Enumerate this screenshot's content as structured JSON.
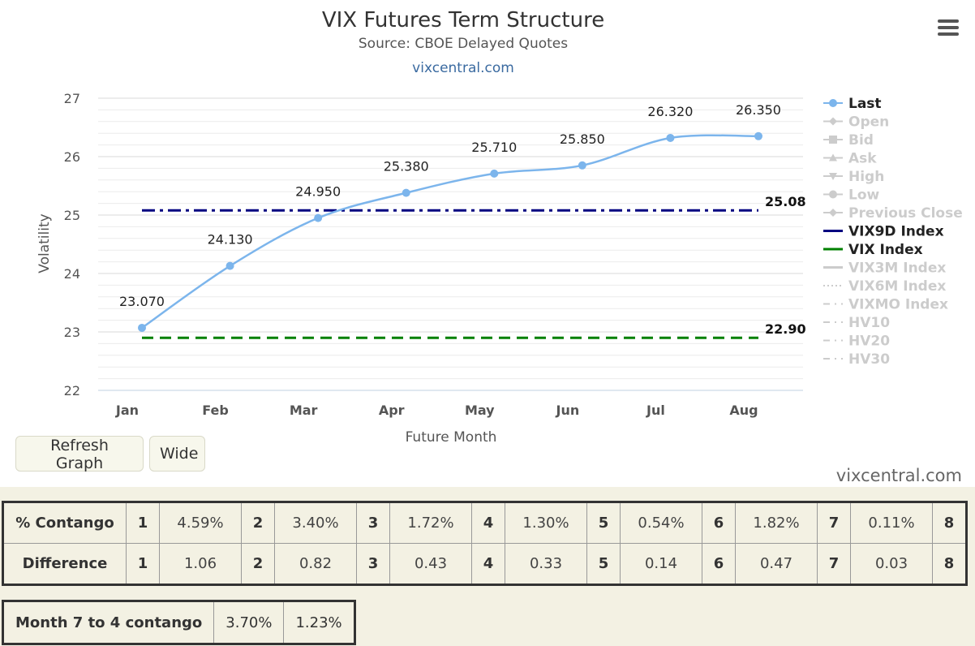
{
  "chart_data": {
    "type": "line",
    "title": "VIX Futures Term Structure",
    "subtitle": "Source: CBOE Delayed Quotes",
    "link": "vixcentral.com",
    "xlabel": "Future Month",
    "ylabel": "Volatility",
    "categories": [
      "Jan",
      "Feb",
      "Mar",
      "Apr",
      "May",
      "Jun",
      "Jul",
      "Aug"
    ],
    "ylim": [
      22,
      27
    ],
    "yticks": [
      22,
      23,
      24,
      25,
      26,
      27
    ],
    "grid": true,
    "legend_position": "right",
    "series": [
      {
        "name": "Last",
        "values": [
          23.07,
          24.13,
          24.95,
          25.38,
          25.71,
          25.85,
          26.32,
          26.35
        ],
        "labels": [
          "23.070",
          "24.130",
          "24.950",
          "25.380",
          "25.710",
          "25.850",
          "26.320",
          "26.350"
        ],
        "color": "#7cb5ec"
      },
      {
        "name": "VIX9D Index",
        "level": 25.08,
        "label": "25.08",
        "color": "#000080"
      },
      {
        "name": "VIX Index",
        "level": 22.9,
        "label": "22.90",
        "color": "#008000"
      }
    ],
    "legend": [
      {
        "name": "Last",
        "active": true,
        "marker": "circle"
      },
      {
        "name": "Open",
        "active": false,
        "marker": "diamond"
      },
      {
        "name": "Bid",
        "active": false,
        "marker": "square"
      },
      {
        "name": "Ask",
        "active": false,
        "marker": "triangle"
      },
      {
        "name": "High",
        "active": false,
        "marker": "triangle-down"
      },
      {
        "name": "Low",
        "active": false,
        "marker": "circle"
      },
      {
        "name": "Previous Close",
        "active": false,
        "marker": "diamond"
      },
      {
        "name": "VIX9D Index",
        "active": true,
        "marker": "line",
        "color": "#000080"
      },
      {
        "name": "VIX Index",
        "active": true,
        "marker": "line",
        "color": "#008000"
      },
      {
        "name": "VIX3M Index",
        "active": false,
        "marker": "line"
      },
      {
        "name": "VIX6M Index",
        "active": false,
        "marker": "dotted"
      },
      {
        "name": "VIXMO Index",
        "active": false,
        "marker": "dashdot"
      },
      {
        "name": "HV10",
        "active": false,
        "marker": "dashdot"
      },
      {
        "name": "HV20",
        "active": false,
        "marker": "dashdot"
      },
      {
        "name": "HV30",
        "active": false,
        "marker": "dashdot"
      }
    ]
  },
  "buttons": {
    "refresh": "Refresh Graph",
    "wide": "Wide"
  },
  "watermark": "vixcentral.com",
  "contango_table": {
    "rows": [
      {
        "label": "% Contango",
        "cells": [
          [
            "1",
            "4.59%"
          ],
          [
            "2",
            "3.40%"
          ],
          [
            "3",
            "1.72%"
          ],
          [
            "4",
            "1.30%"
          ],
          [
            "5",
            "0.54%"
          ],
          [
            "6",
            "1.82%"
          ],
          [
            "7",
            "0.11%"
          ]
        ],
        "last": "8"
      },
      {
        "label": "Difference",
        "cells": [
          [
            "1",
            "1.06"
          ],
          [
            "2",
            "0.82"
          ],
          [
            "3",
            "0.43"
          ],
          [
            "4",
            "0.33"
          ],
          [
            "5",
            "0.14"
          ],
          [
            "6",
            "0.47"
          ],
          [
            "7",
            "0.03"
          ]
        ],
        "last": "8"
      }
    ]
  },
  "month_table": {
    "label": "Month 7 to 4 contango",
    "values": [
      "3.70%",
      "1.23%"
    ]
  }
}
